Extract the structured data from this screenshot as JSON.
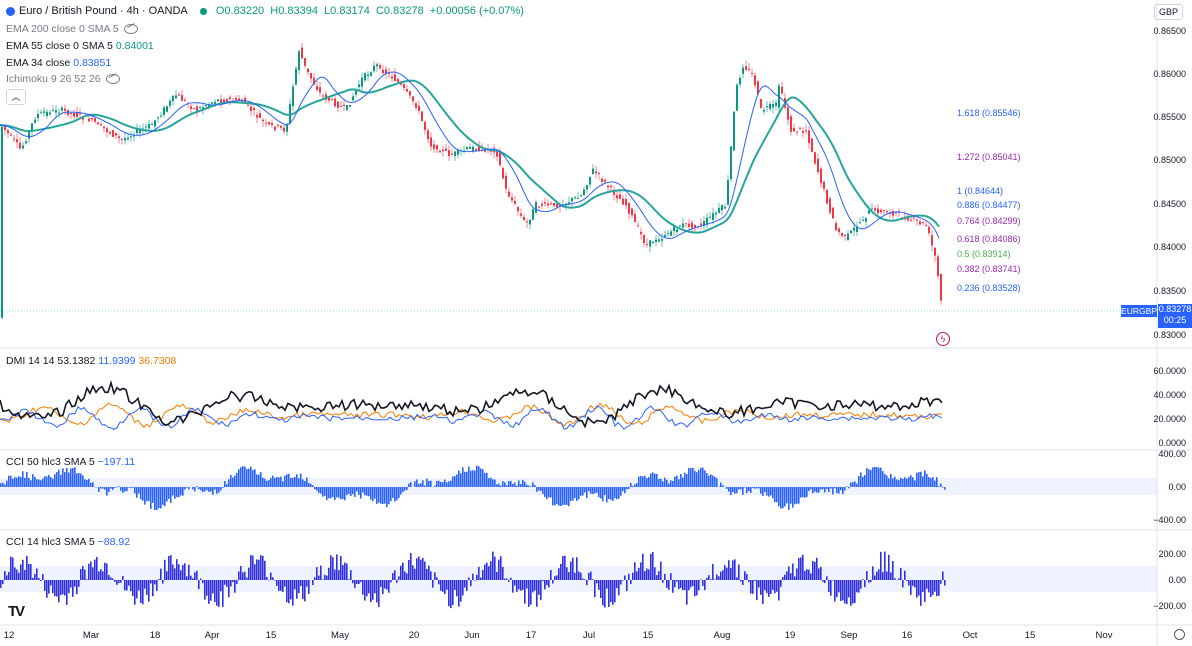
{
  "header": {
    "symbol_title": "Euro / British Pound · 4h · OANDA",
    "ohlc": {
      "o": "O0.83220",
      "h": "H0.83394",
      "l": "L0.83174",
      "c": "C0.83278",
      "change": "+0.00056 (+0.07%)"
    },
    "currency": "GBP"
  },
  "indicators": [
    {
      "label": "EMA 200 close 0 SMA 5",
      "value": ""
    },
    {
      "label": "EMA 55 close 0 SMA 5",
      "value": "0.84001",
      "color": "#2962ff"
    },
    {
      "label": "EMA 34 close",
      "value": "0.83851",
      "color": "#2962ff"
    },
    {
      "label": "Ichimoku 9 26 52 26",
      "value": ""
    }
  ],
  "price_axis": [
    "0.86500",
    "0.86000",
    "0.85500",
    "0.85000",
    "0.84500",
    "0.84000",
    "0.83500",
    "0.83000"
  ],
  "fib_levels": [
    {
      "text": "1.618 (0.85546)",
      "color": "#2962ff"
    },
    {
      "text": "1.272 (0.85041)",
      "color": "#9c27b0"
    },
    {
      "text": "1 (0.84644)",
      "color": "#2962ff"
    },
    {
      "text": "0.886 (0.84477)",
      "color": "#2962ff"
    },
    {
      "text": "0.764 (0.84299)",
      "color": "#9c27b0"
    },
    {
      "text": "0.618 (0.84086)",
      "color": "#9c27b0"
    },
    {
      "text": "0.5 (0.83914)",
      "color": "#4caf50"
    },
    {
      "text": "0.382 (0.83741)",
      "color": "#9c27b0"
    },
    {
      "text": "0.236 (0.83528)",
      "color": "#2962ff"
    }
  ],
  "price_tag": {
    "symbol": "EURGBP",
    "price": "0.83278",
    "countdown": "00:25"
  },
  "dmi": {
    "label": "DMI 14 14",
    "adx": "53.1382",
    "plus": "11.9399",
    "minus": "36.7308",
    "axis": [
      "60.0000",
      "40.0000",
      "20.0000",
      "0.0000"
    ]
  },
  "cci50": {
    "label": "CCI 50 hlc3 SMA 5",
    "value": "−197.11",
    "axis": [
      "400.00",
      "0.00",
      "−400.00"
    ]
  },
  "cci14": {
    "label": "CCI 14 hlc3 SMA 5",
    "value": "−88.92",
    "axis": [
      "200.00",
      "0.00",
      "−200.00"
    ]
  },
  "time_axis": [
    "12",
    "Mar",
    "18",
    "Apr",
    "15",
    "May",
    "20",
    "Jun",
    "17",
    "Jul",
    "15",
    "Aug",
    "19",
    "Sep",
    "16",
    "Oct",
    "15",
    "Nov"
  ],
  "colors": {
    "up": "#089981",
    "down": "#f23645",
    "ema_teal": "#26a69a",
    "blue": "#2962ff",
    "orange": "#f57c00",
    "adx": "#131722",
    "cci": "#2962ff"
  }
}
